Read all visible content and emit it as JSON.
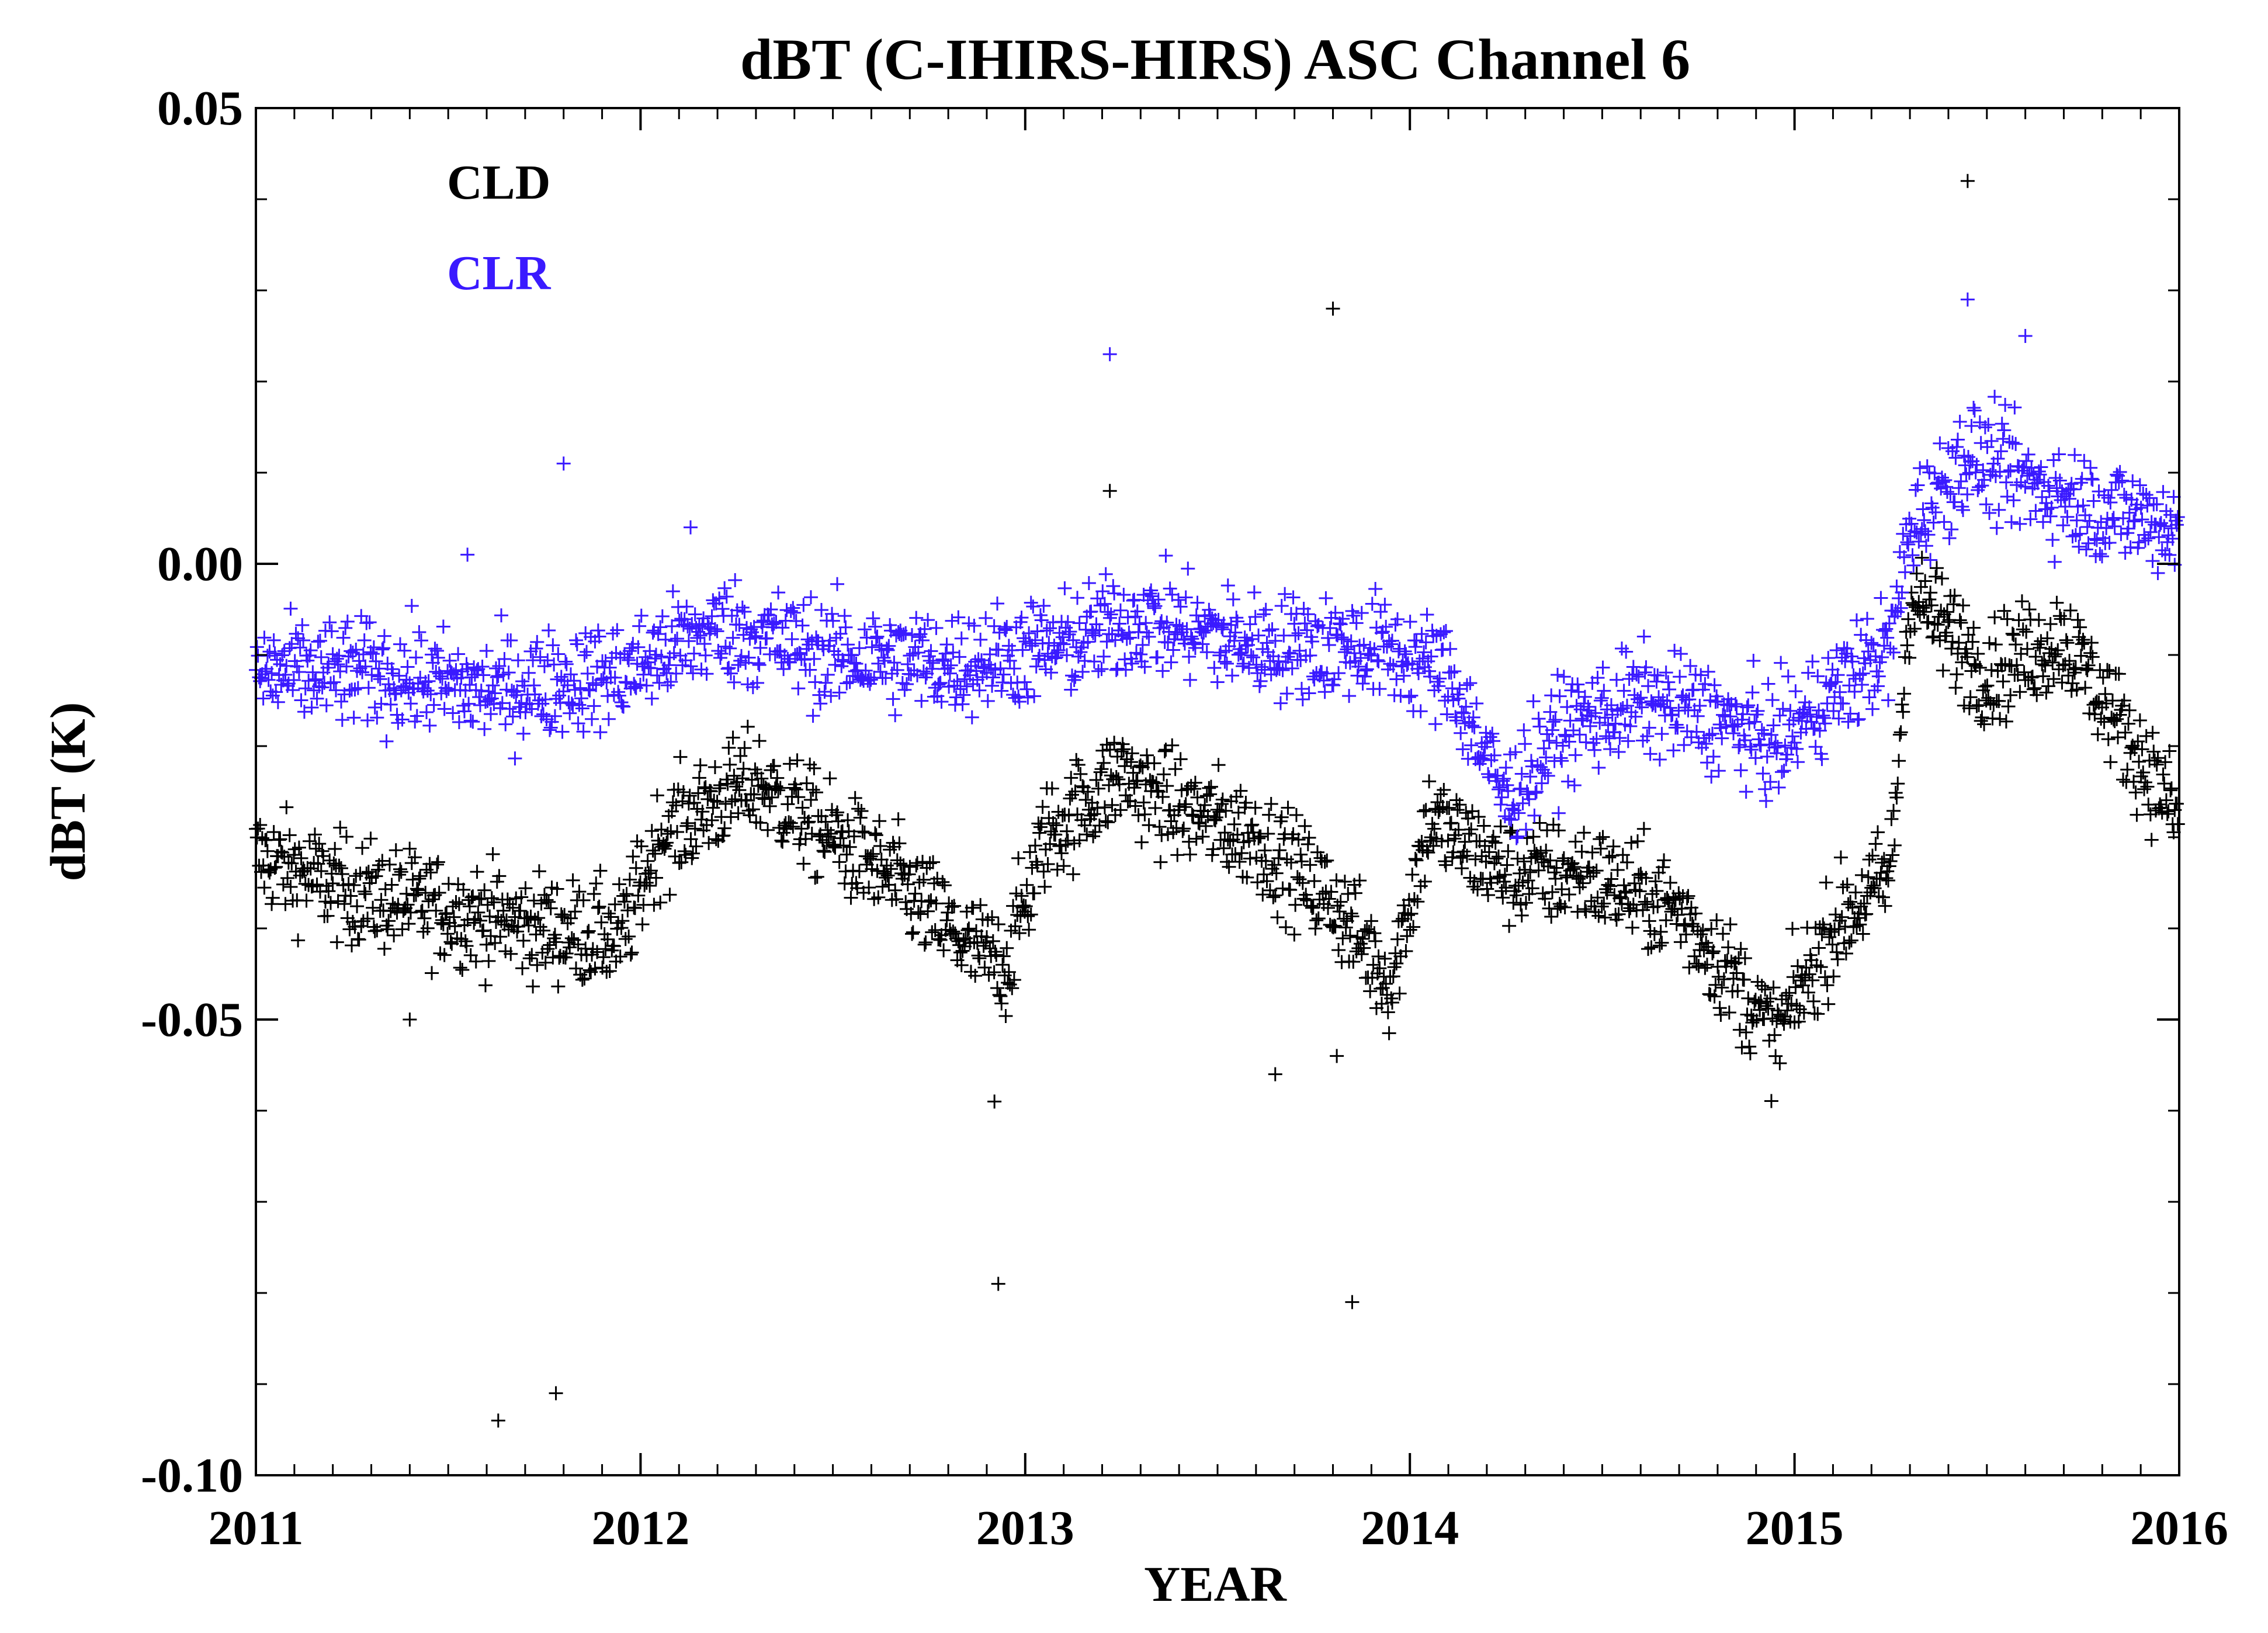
{
  "chart_data": {
    "type": "scatter",
    "title": "dBT (C-IHIRS-HIRS) ASC Channel 6",
    "xlabel": "YEAR",
    "ylabel": "dBT (K)",
    "xlim": [
      2011,
      2016
    ],
    "ylim": [
      -0.1,
      0.05
    ],
    "x_ticks": [
      2011,
      2012,
      2013,
      2014,
      2015,
      2016
    ],
    "x_tick_labels": [
      "2011",
      "2012",
      "2013",
      "2014",
      "2015",
      "2016"
    ],
    "y_ticks": [
      -0.1,
      -0.05,
      0.0,
      0.05
    ],
    "y_tick_labels": [
      "-0.10",
      "-0.05",
      "0.00",
      "0.05"
    ],
    "marker": "plus",
    "legend_position": "top-left",
    "legend": [
      {
        "label": "CLD",
        "color": "#000000"
      },
      {
        "label": "CLR",
        "color": "#3a1aff"
      }
    ],
    "series": [
      {
        "name": "CLD",
        "color": "#000000",
        "trend": [
          [
            2011.0,
            -0.032
          ],
          [
            2011.25,
            -0.036
          ],
          [
            2011.5,
            -0.038
          ],
          [
            2011.75,
            -0.04
          ],
          [
            2011.95,
            -0.041
          ],
          [
            2012.05,
            -0.03
          ],
          [
            2012.2,
            -0.026
          ],
          [
            2012.3,
            -0.024
          ],
          [
            2012.5,
            -0.03
          ],
          [
            2012.7,
            -0.036
          ],
          [
            2012.85,
            -0.042
          ],
          [
            2012.95,
            -0.044
          ],
          [
            2013.05,
            -0.03
          ],
          [
            2013.25,
            -0.023
          ],
          [
            2013.35,
            -0.026
          ],
          [
            2013.6,
            -0.03
          ],
          [
            2013.8,
            -0.037
          ],
          [
            2013.95,
            -0.046
          ],
          [
            2014.05,
            -0.028
          ],
          [
            2014.25,
            -0.034
          ],
          [
            2014.45,
            -0.034
          ],
          [
            2014.7,
            -0.038
          ],
          [
            2014.85,
            -0.046
          ],
          [
            2014.95,
            -0.052
          ],
          [
            2015.1,
            -0.04
          ],
          [
            2015.25,
            -0.034
          ],
          [
            2015.3,
            -0.003
          ],
          [
            2015.5,
            -0.012
          ],
          [
            2015.7,
            -0.008
          ],
          [
            2015.85,
            -0.018
          ],
          [
            2016.0,
            -0.028
          ]
        ],
        "outliers": [
          [
            2011.63,
            -0.094
          ],
          [
            2011.78,
            -0.091
          ],
          [
            2012.93,
            -0.079
          ],
          [
            2012.92,
            -0.059
          ],
          [
            2013.22,
            0.008
          ],
          [
            2013.85,
            -0.081
          ],
          [
            2013.65,
            -0.056
          ],
          [
            2013.8,
            0.028
          ],
          [
            2015.45,
            0.042
          ],
          [
            2013.81,
            -0.054
          ],
          [
            2011.4,
            -0.05
          ]
        ]
      },
      {
        "name": "CLR",
        "color": "#3a1aff",
        "trend": [
          [
            2011.0,
            -0.012
          ],
          [
            2011.3,
            -0.012
          ],
          [
            2011.6,
            -0.014
          ],
          [
            2011.95,
            -0.012
          ],
          [
            2012.2,
            -0.007
          ],
          [
            2012.5,
            -0.01
          ],
          [
            2012.8,
            -0.011
          ],
          [
            2013.1,
            -0.009
          ],
          [
            2013.3,
            -0.006
          ],
          [
            2013.6,
            -0.009
          ],
          [
            2013.9,
            -0.009
          ],
          [
            2014.1,
            -0.012
          ],
          [
            2014.25,
            -0.026
          ],
          [
            2014.4,
            -0.018
          ],
          [
            2014.6,
            -0.015
          ],
          [
            2014.8,
            -0.017
          ],
          [
            2014.95,
            -0.02
          ],
          [
            2015.1,
            -0.014
          ],
          [
            2015.25,
            -0.009
          ],
          [
            2015.3,
            0.004
          ],
          [
            2015.45,
            0.012
          ],
          [
            2015.6,
            0.009
          ],
          [
            2015.8,
            0.006
          ],
          [
            2016.0,
            0.004
          ]
        ],
        "outliers": [
          [
            2011.8,
            0.011
          ],
          [
            2013.22,
            0.023
          ],
          [
            2015.45,
            0.029
          ],
          [
            2015.6,
            0.025
          ],
          [
            2012.13,
            0.004
          ],
          [
            2011.55,
            0.001
          ]
        ]
      }
    ]
  }
}
